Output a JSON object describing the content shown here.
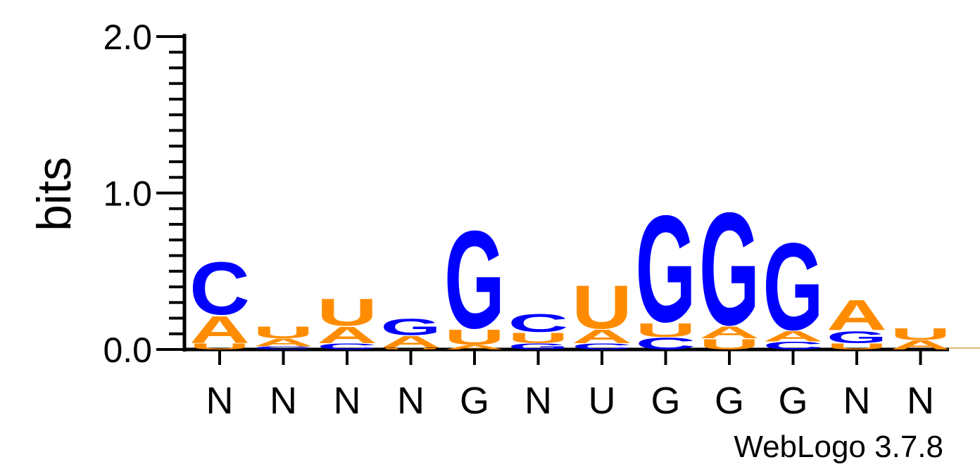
{
  "chart_data": {
    "type": "sequence-logo",
    "ylabel": "bits",
    "ylim": [
      0,
      2.0
    ],
    "ytick_labels": [
      "0.0",
      "1.0",
      "2.0"
    ],
    "colors": {
      "A": "#FF8C00",
      "U": "#FF8C00",
      "C": "#0000FF",
      "G": "#0000FF"
    },
    "positions": [
      {
        "label": "N",
        "stack": [
          {
            "letter": "U",
            "bits": 0.04
          },
          {
            "letter": "A",
            "bits": 0.18
          },
          {
            "letter": "C",
            "bits": 0.35
          }
        ]
      },
      {
        "label": "N",
        "stack": [
          {
            "letter": "C",
            "bits": 0.02
          },
          {
            "letter": "A",
            "bits": 0.05
          },
          {
            "letter": "U",
            "bits": 0.08
          }
        ]
      },
      {
        "label": "N",
        "stack": [
          {
            "letter": "C",
            "bits": 0.04
          },
          {
            "letter": "A",
            "bits": 0.11
          },
          {
            "letter": "U",
            "bits": 0.18
          }
        ]
      },
      {
        "label": "N",
        "stack": [
          {
            "letter": "U",
            "bits": 0.01
          },
          {
            "letter": "A",
            "bits": 0.08
          },
          {
            "letter": "G",
            "bits": 0.11
          }
        ]
      },
      {
        "label": "G",
        "stack": [
          {
            "letter": "A",
            "bits": 0.03
          },
          {
            "letter": "U",
            "bits": 0.1
          },
          {
            "letter": "G",
            "bits": 0.65
          }
        ]
      },
      {
        "label": "N",
        "stack": [
          {
            "letter": "G",
            "bits": 0.04
          },
          {
            "letter": "U",
            "bits": 0.07
          },
          {
            "letter": "C",
            "bits": 0.12
          }
        ]
      },
      {
        "label": "U",
        "stack": [
          {
            "letter": "C",
            "bits": 0.04
          },
          {
            "letter": "A",
            "bits": 0.09
          },
          {
            "letter": "U",
            "bits": 0.29
          }
        ]
      },
      {
        "label": "G",
        "stack": [
          {
            "letter": "C",
            "bits": 0.08
          },
          {
            "letter": "U",
            "bits": 0.09
          },
          {
            "letter": "G",
            "bits": 0.71
          }
        ]
      },
      {
        "label": "G",
        "stack": [
          {
            "letter": "U",
            "bits": 0.07
          },
          {
            "letter": "A",
            "bits": 0.08
          },
          {
            "letter": "G",
            "bits": 0.75
          }
        ]
      },
      {
        "label": "G",
        "stack": [
          {
            "letter": "C",
            "bits": 0.05
          },
          {
            "letter": "A",
            "bits": 0.07
          },
          {
            "letter": "G",
            "bits": 0.58
          }
        ]
      },
      {
        "label": "N",
        "stack": [
          {
            "letter": "U",
            "bits": 0.04
          },
          {
            "letter": "G",
            "bits": 0.08
          },
          {
            "letter": "A",
            "bits": 0.2
          }
        ]
      },
      {
        "label": "N",
        "stack": [
          {
            "letter": "A",
            "bits": 0.06
          },
          {
            "letter": "U",
            "bits": 0.08
          }
        ]
      }
    ]
  },
  "credit": "WebLogo 3.7.8"
}
